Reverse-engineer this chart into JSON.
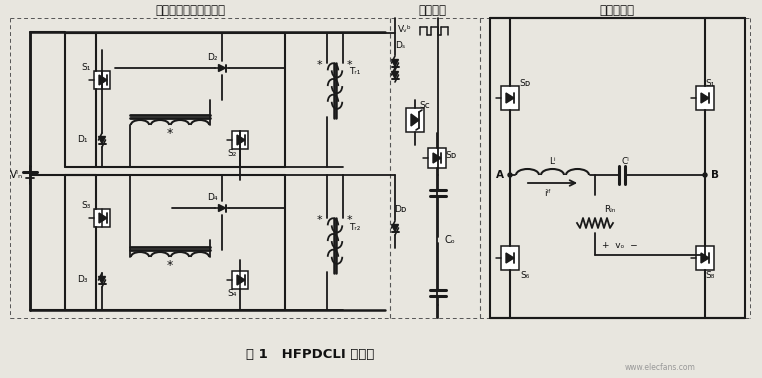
{
  "title": "图 1   HFPDCLI 电路图",
  "section1_label": "交错并联正激变换电路",
  "section2_label": "吸收电路",
  "section3_label": "全桥逆变器",
  "bg_color": "#e8e6df",
  "line_color": "#1a1a1a",
  "text_color": "#111111",
  "watermark": "www.elecfans.com",
  "fig_width": 7.62,
  "fig_height": 3.78,
  "dpi": 100
}
